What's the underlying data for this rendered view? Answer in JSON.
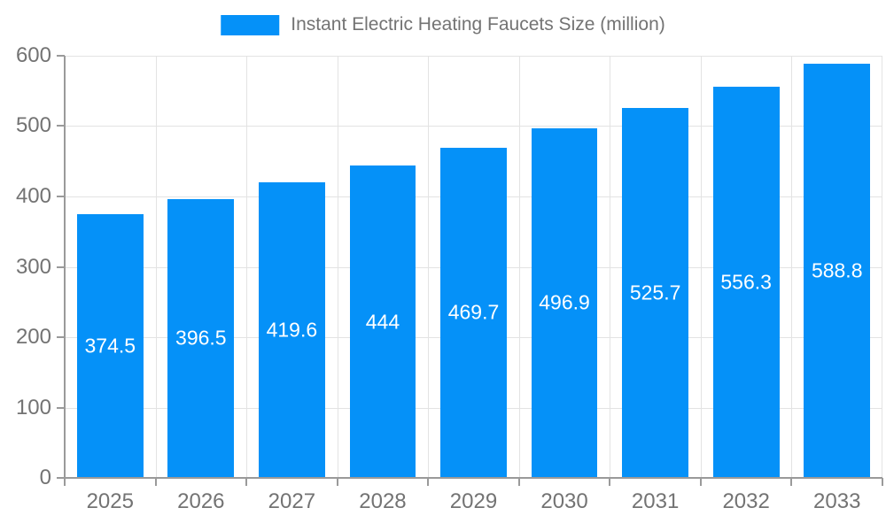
{
  "chart_data": {
    "type": "bar",
    "title": "Instant Electric Heating Faucets Size (million)",
    "categories": [
      "2025",
      "2026",
      "2027",
      "2028",
      "2029",
      "2030",
      "2031",
      "2032",
      "2033"
    ],
    "values": [
      374.5,
      396.5,
      419.6,
      444,
      469.7,
      496.9,
      525.7,
      556.3,
      588.8
    ],
    "value_labels": [
      "374.5",
      "396.5",
      "419.6",
      "444",
      "469.7",
      "496.9",
      "525.7",
      "556.3",
      "588.8"
    ],
    "xlabel": "",
    "ylabel": "",
    "ylim": [
      0,
      600
    ],
    "y_ticks": [
      0,
      100,
      200,
      300,
      400,
      500,
      600
    ],
    "grid": "horizontal and vertical",
    "legend_position": "top-center",
    "bar_label_position": "inside-center"
  },
  "colors": {
    "background": "#ffffff",
    "bar": "#0591f8",
    "bar_label_text": "#ffffff",
    "axis_line": "#9a9a9a",
    "grid_line": "#e3e3e3",
    "tick_label_text": "#737373",
    "legend_text": "#737373"
  }
}
